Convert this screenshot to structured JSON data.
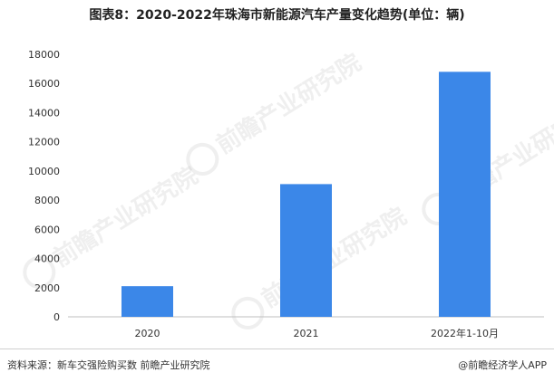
{
  "title": "图表8：2020-2022年珠海市新能源汽车产量变化趋势(单位：辆)",
  "watermark_text": "前瞻产业研究院",
  "footer": {
    "source": "资料来源：新车交强险购买数 前瞻产业研究院",
    "brand": "@前瞻经济学人APP"
  },
  "colors": {
    "bar": "#3b87e8",
    "axis": "#bfbfbf",
    "text": "#333333"
  },
  "chart_data": {
    "type": "bar",
    "categories": [
      "2020",
      "2021",
      "2022年1-10月"
    ],
    "values": [
      2100,
      9100,
      16800
    ],
    "title": "图表8：2020-2022年珠海市新能源汽车产量变化趋势(单位：辆)",
    "xlabel": "",
    "ylabel": "",
    "ylim": [
      0,
      18000
    ],
    "yticks": [
      0,
      2000,
      4000,
      6000,
      8000,
      10000,
      12000,
      14000,
      16000,
      18000
    ],
    "grid": false,
    "legend": "none"
  }
}
